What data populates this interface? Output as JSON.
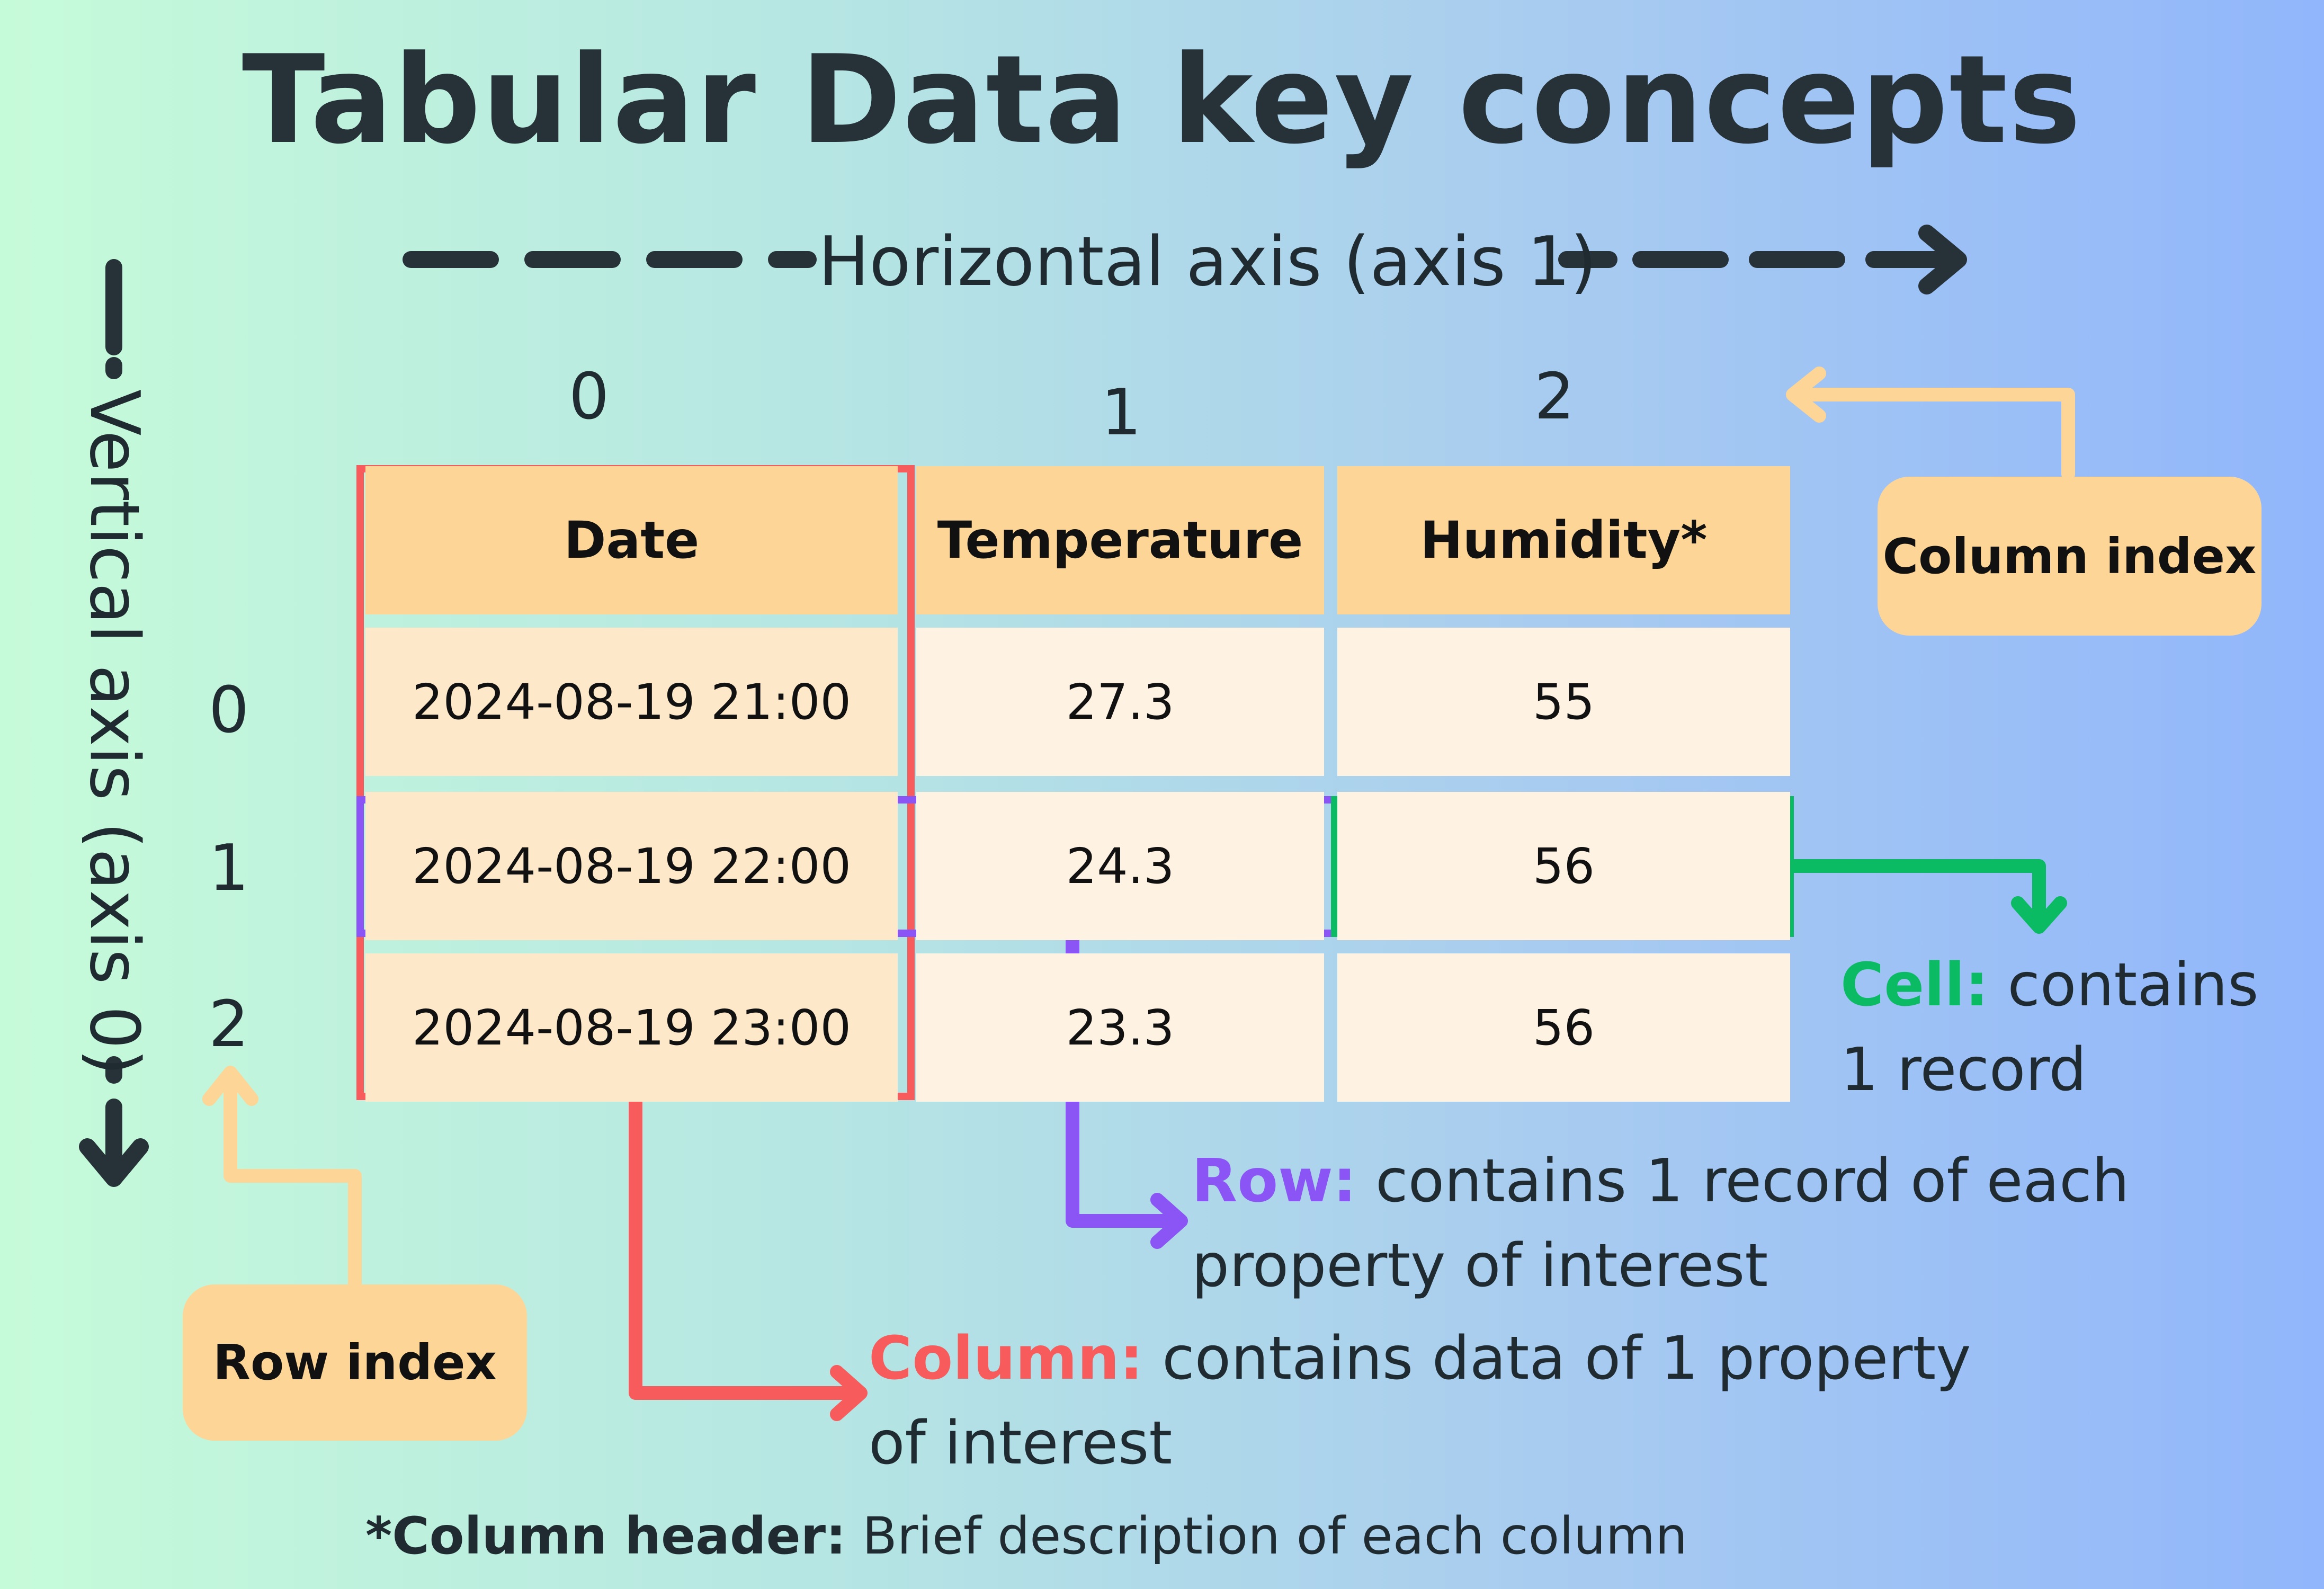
{
  "title": "Tabular Data key concepts",
  "axes": {
    "horizontal_label": "Horizontal axis (axis 1)",
    "vertical_label": "Vertical axis (axis 0)"
  },
  "column_indices": [
    "0",
    "1",
    "2"
  ],
  "row_indices": [
    "0",
    "1",
    "2"
  ],
  "table": {
    "headers": [
      "Date",
      "Temperature",
      "Humidity*"
    ],
    "rows": [
      [
        "2024-08-19 21:00",
        "27.3",
        "55"
      ],
      [
        "2024-08-19 22:00",
        "24.3",
        "56"
      ],
      [
        "2024-08-19 23:00",
        "23.3",
        "56"
      ]
    ]
  },
  "badges": {
    "column_index": "Column index",
    "row_index": "Row index"
  },
  "annotations": {
    "cell": {
      "keyword": "Cell:",
      "line1": " contains",
      "line2": "1 record"
    },
    "row": {
      "keyword": "Row:",
      "line1": " contains  1 record of each",
      "line2": "property of interest"
    },
    "column": {
      "keyword": "Column:",
      "line1": " contains  data of 1 property",
      "line2": "of interest"
    }
  },
  "footnote": {
    "keyword": "*Column header:",
    "text": " Brief description of each column"
  },
  "colors": {
    "title": "#263238",
    "column_highlight": "#f75b5b",
    "row_highlight": "#8b55f5",
    "cell_highlight": "#0abb63",
    "badge_fill": "#fdd596",
    "badge_arrow": "#fdd596",
    "axis_arrow": "#263238",
    "header_fill": "#fdd596",
    "cell_fill": "#fef2e3"
  }
}
